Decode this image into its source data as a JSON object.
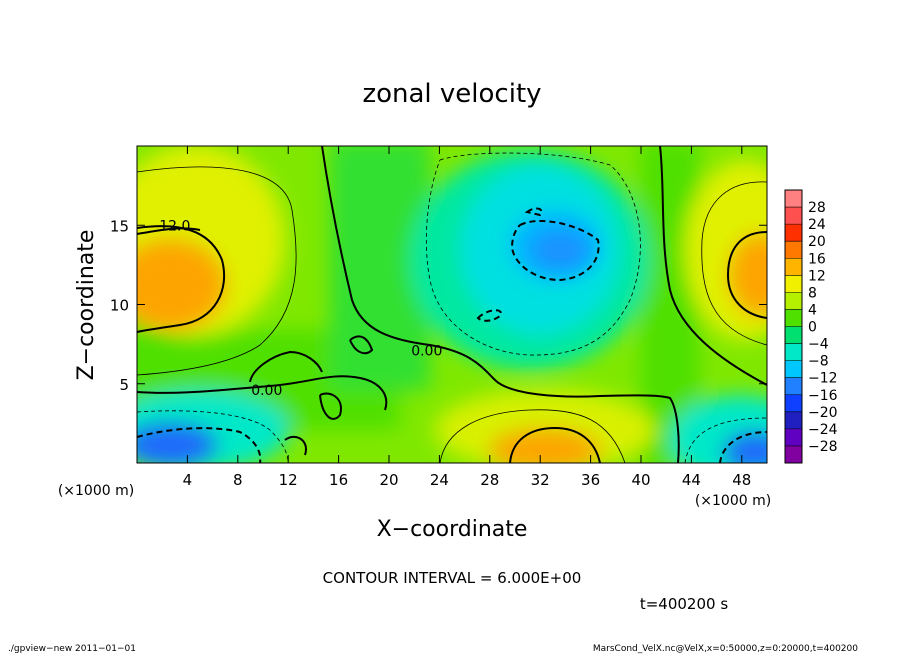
{
  "chart_data": {
    "type": "heatmap",
    "title": "zonal velocity",
    "xlabel": "X−coordinate",
    "ylabel": "Z−coordinate",
    "x_unit": "(×1000 m)",
    "y_unit": "(×1000 m)",
    "xlim": [
      0,
      50
    ],
    "ylim": [
      0,
      20
    ],
    "x_ticks": [
      "4",
      "8",
      "12",
      "16",
      "20",
      "24",
      "28",
      "32",
      "36",
      "40",
      "44",
      "48"
    ],
    "x_tick_values": [
      4,
      8,
      12,
      16,
      20,
      24,
      28,
      32,
      36,
      40,
      44,
      48
    ],
    "y_ticks": [
      "5",
      "10",
      "15"
    ],
    "y_tick_values": [
      5,
      10,
      15
    ],
    "contour_labels": [
      {
        "text": "12.0",
        "x": 3.0,
        "y": 15.0
      },
      {
        "text": "0.00",
        "x": 23.0,
        "y": 7.1
      },
      {
        "text": "0.00",
        "x": 10.3,
        "y": 4.6
      }
    ],
    "colorbar": {
      "labels": [
        "28",
        "24",
        "20",
        "16",
        "12",
        "8",
        "4",
        "0",
        "−4",
        "−8",
        "−12",
        "−16",
        "−20",
        "−24",
        "−28"
      ],
      "colors": [
        "#ff8080",
        "#ff5050",
        "#ff3000",
        "#ff7800",
        "#ffb400",
        "#f0f000",
        "#b4f000",
        "#50e000",
        "#00e070",
        "#00e8c8",
        "#00c8ff",
        "#2080ff",
        "#1040ff",
        "#2020c0",
        "#6000c0",
        "#8000a0"
      ]
    },
    "features": [
      {
        "name": "warm-left",
        "x": 3.5,
        "y": 11.5,
        "value": 16
      },
      {
        "name": "warm-right",
        "x": 49.5,
        "y": 12.0,
        "value": 16
      },
      {
        "name": "warm-bottom",
        "x": 33.0,
        "y": 1.2,
        "value": 16
      },
      {
        "name": "cold-center",
        "x": 34.0,
        "y": 13.0,
        "value": -12
      },
      {
        "name": "cold-bottom-left",
        "x": 2.5,
        "y": 1.0,
        "value": -18
      },
      {
        "name": "cold-bottom-right",
        "x": 48.5,
        "y": 0.8,
        "value": -18
      }
    ]
  },
  "footer": {
    "contour_interval": "CONTOUR INTERVAL = 6.000E+00",
    "time": "t=400200 s",
    "left_info": "./gpview−new  2011−01−01",
    "right_info": "MarsCond_VelX.nc@VelX,x=0:50000,z=0:20000,t=400200"
  }
}
